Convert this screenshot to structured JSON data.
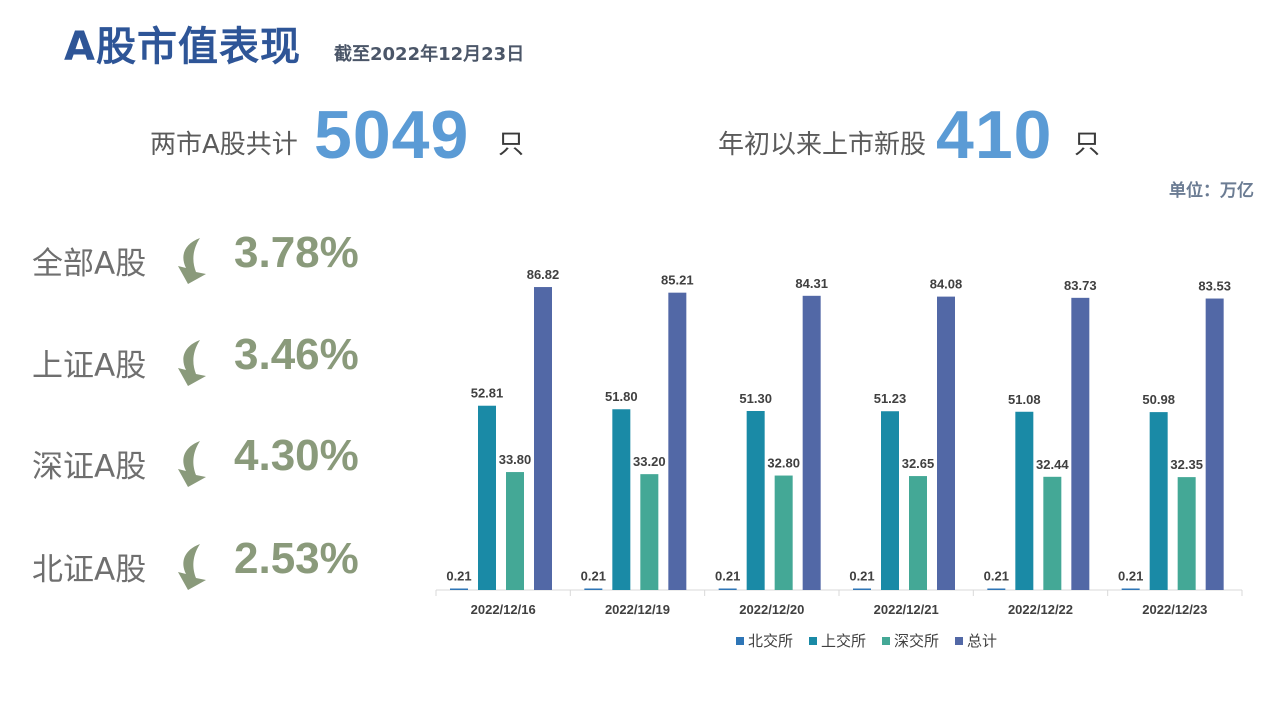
{
  "header": {
    "title": "A股市值表现",
    "as_of": "截至2022年12月23日"
  },
  "stats": {
    "total_label": "两市A股共计",
    "total_value": "5049",
    "total_unit": "只",
    "ipo_label": "年初以来上市新股",
    "ipo_value": "410",
    "ipo_unit": "只"
  },
  "unit_note": "单位：万亿",
  "indices": [
    {
      "label": "全部A股",
      "change": "3.78%",
      "icon": "down-arrow-icon"
    },
    {
      "label": "上证A股",
      "change": "3.46%",
      "icon": "down-arrow-icon"
    },
    {
      "label": "深证A股",
      "change": "4.30%",
      "icon": "down-arrow-icon"
    },
    {
      "label": "北证A股",
      "change": "2.53%",
      "icon": "down-arrow-icon"
    }
  ],
  "colors": {
    "title": "#2e5597",
    "big_number": "#5b9bd5",
    "percent": "#8a9a7b",
    "arrow": "#8a9a7b"
  },
  "chart_data": {
    "type": "bar",
    "categories": [
      "2022/12/16",
      "2022/12/19",
      "2022/12/20",
      "2022/12/21",
      "2022/12/22",
      "2022/12/23"
    ],
    "series": [
      {
        "name": "北交所",
        "color": "#2e75b6",
        "values": [
          0.21,
          0.21,
          0.21,
          0.21,
          0.21,
          0.21
        ],
        "labels": [
          "0.21",
          "0.21",
          "0.21",
          "0.21",
          "0.21",
          "0.21"
        ]
      },
      {
        "name": "上交所",
        "color": "#1a8aa6",
        "values": [
          52.81,
          51.8,
          51.3,
          51.23,
          51.08,
          50.98
        ],
        "labels": [
          "52.81",
          "51.80",
          "51.30",
          "51.23",
          "51.08",
          "50.98"
        ]
      },
      {
        "name": "深交所",
        "color": "#44a896",
        "values": [
          33.8,
          33.2,
          32.8,
          32.65,
          32.44,
          32.35
        ],
        "labels": [
          "33.80",
          "33.20",
          "32.80",
          "32.65",
          "32.44",
          "32.35"
        ]
      },
      {
        "name": "总计",
        "color": "#5268a6",
        "values": [
          86.82,
          85.21,
          84.31,
          84.08,
          83.73,
          83.53
        ],
        "labels": [
          "86.82",
          "85.21",
          "84.31",
          "84.08",
          "83.73",
          "83.53"
        ]
      }
    ],
    "ylim": [
      0,
      100
    ],
    "grid": false,
    "legend": "bottom"
  }
}
